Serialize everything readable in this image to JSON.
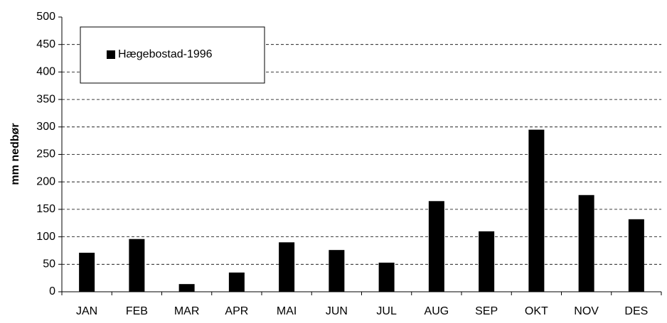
{
  "chart_data": {
    "type": "bar",
    "y_label": "mm nedbør",
    "categories": [
      "JAN",
      "FEB",
      "MAR",
      "APR",
      "MAI",
      "JUN",
      "JUL",
      "AUG",
      "SEP",
      "OKT",
      "NOV",
      "DES"
    ],
    "series": [
      {
        "name": "Hægebostad-1996",
        "color": "#000000",
        "values": [
          71,
          96,
          14,
          35,
          90,
          76,
          53,
          165,
          110,
          295,
          176,
          132
        ]
      }
    ],
    "ylim": [
      0,
      500
    ],
    "yticks": [
      0,
      50,
      100,
      150,
      200,
      250,
      300,
      350,
      400,
      450,
      500
    ],
    "grid": true,
    "legend": "top-left"
  }
}
